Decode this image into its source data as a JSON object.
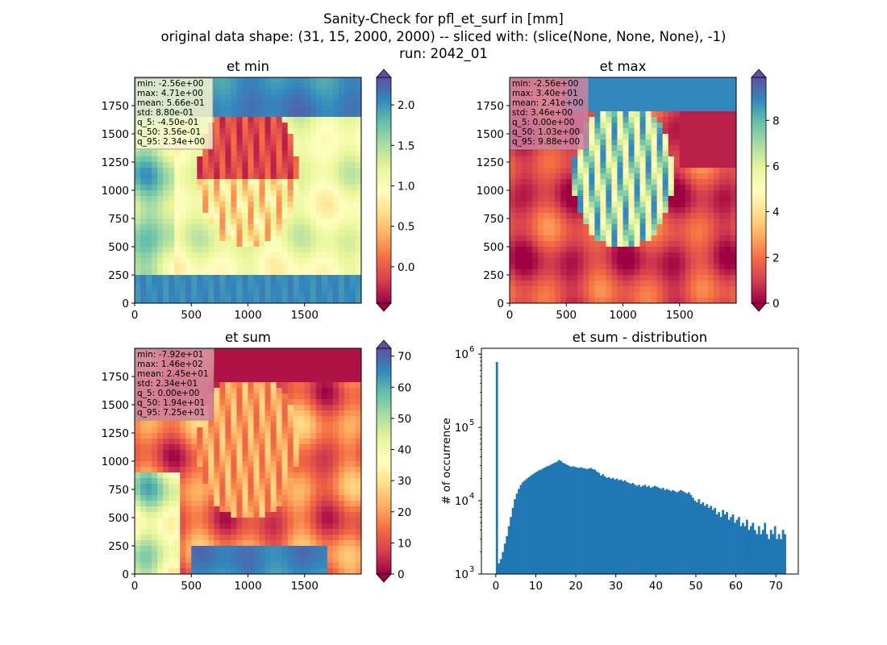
{
  "figure": {
    "title_lines": [
      "Sanity-Check for pfl_et_surf in [mm]",
      "original data shape: (31, 15, 2000, 2000) -- sliced with: (slice(None, None, None), -1)",
      "run: 2042_01"
    ]
  },
  "panels": [
    {
      "title": "et min",
      "stats": [
        "min: -2.56e+00",
        "max: 4.71e+00",
        "mean: 5.66e-01",
        "std: 8.80e-01",
        "q_5: -4.50e-01",
        "q_50: 3.56e-01",
        "q_95: 2.34e+00"
      ],
      "stats_bg": "#f6f9cc",
      "xticks": [
        "0",
        "500",
        "1000",
        "1500"
      ],
      "yticks": [
        "0",
        "250",
        "500",
        "750",
        "1000",
        "1250",
        "1500",
        "1750"
      ],
      "colorbar_ticks": [
        "0.0",
        "0.5",
        "1.0",
        "1.5",
        "2.0"
      ],
      "colorbar_range": [
        -0.45,
        2.34
      ],
      "colorbar_ticks_values": [
        0,
        0.5,
        1.0,
        1.5,
        2.0
      ]
    },
    {
      "title": "et max",
      "stats": [
        "min: -2.56e+00",
        "max: 3.40e+01",
        "mean: 2.41e+00",
        "std: 3.46e+00",
        "q_5: 0.00e+00",
        "q_50: 1.03e+00",
        "q_95: 9.88e+00"
      ],
      "stats_bg": "#d081a0",
      "xticks": [
        "0",
        "500",
        "1000",
        "1500"
      ],
      "yticks": [
        "0",
        "250",
        "500",
        "750",
        "1000",
        "1250",
        "1500",
        "1750"
      ],
      "colorbar_ticks": [
        "0",
        "2",
        "4",
        "6",
        "8"
      ],
      "colorbar_range": [
        0,
        9.88
      ],
      "colorbar_ticks_values": [
        0,
        2,
        4,
        6,
        8
      ]
    },
    {
      "title": "et sum",
      "stats": [
        "min: -7.92e+01",
        "max: 1.46e+02",
        "mean: 2.45e+01",
        "std: 2.34e+01",
        "q_5: 0.00e+00",
        "q_50: 1.94e+01",
        "q_95: 7.25e+01"
      ],
      "stats_bg": "#d081a0",
      "xticks": [
        "0",
        "500",
        "1000",
        "1500"
      ],
      "yticks": [
        "0",
        "250",
        "500",
        "750",
        "1000",
        "1250",
        "1500",
        "1750"
      ],
      "colorbar_ticks": [
        "0",
        "10",
        "20",
        "30",
        "40",
        "50",
        "60",
        "70"
      ],
      "colorbar_range": [
        0,
        72.5
      ],
      "colorbar_ticks_values": [
        0,
        10,
        20,
        30,
        40,
        50,
        60,
        70
      ]
    }
  ],
  "histogram": {
    "title": "et sum - distribution",
    "ylabel": "# of occurrence",
    "xticks": [
      "0",
      "10",
      "20",
      "30",
      "40",
      "50",
      "60",
      "70"
    ],
    "ytick_labels": [
      "10",
      "10",
      "10"
    ],
    "ytick_exponents": [
      "3",
      "4",
      "5"
    ],
    "ytick_top_label": "10",
    "ytick_top_exponent": "6"
  },
  "chart_data": [
    {
      "type": "heatmap",
      "title": "et min",
      "xlim": [
        0,
        2000
      ],
      "ylim": [
        0,
        2000
      ],
      "colormap": "Spectral",
      "color_range": [
        -0.45,
        2.34
      ]
    },
    {
      "type": "heatmap",
      "title": "et max",
      "xlim": [
        0,
        2000
      ],
      "ylim": [
        0,
        2000
      ],
      "colormap": "Spectral",
      "color_range": [
        0,
        9.88
      ]
    },
    {
      "type": "heatmap",
      "title": "et sum",
      "xlim": [
        0,
        2000
      ],
      "ylim": [
        0,
        2000
      ],
      "colormap": "Spectral",
      "color_range": [
        0,
        72.5
      ]
    },
    {
      "type": "bar",
      "title": "et sum - distribution",
      "ylabel": "# of occurrence",
      "yscale": "log",
      "ylim": [
        1000,
        1200000
      ],
      "xlim": [
        -3.6,
        75.6
      ],
      "color": "#1f77b4",
      "bins": {
        "x": [
          0,
          0.5,
          1,
          1.5,
          2,
          2.5,
          3,
          3.5,
          4,
          4.5,
          5,
          5.5,
          6,
          6.5,
          7,
          7.5,
          8,
          8.5,
          9,
          9.5,
          10,
          10.5,
          11,
          11.5,
          12,
          12.5,
          13,
          13.5,
          14,
          14.5,
          15,
          15.5,
          16,
          16.5,
          17,
          17.5,
          18,
          18.5,
          19,
          19.5,
          20,
          20.5,
          21,
          21.5,
          22,
          22.5,
          23,
          23.5,
          24,
          24.5,
          25,
          25.5,
          26,
          26.5,
          27,
          27.5,
          28,
          28.5,
          29,
          29.5,
          30,
          30.5,
          31,
          31.5,
          32,
          32.5,
          33,
          33.5,
          34,
          34.5,
          35,
          35.5,
          36,
          36.5,
          37,
          37.5,
          38,
          38.5,
          39,
          39.5,
          40,
          40.5,
          41,
          41.5,
          42,
          42.5,
          43,
          43.5,
          44,
          44.5,
          45,
          45.5,
          46,
          46.5,
          47,
          47.5,
          48,
          48.5,
          49,
          49.5,
          50,
          50.5,
          51,
          51.5,
          52,
          52.5,
          53,
          53.5,
          54,
          54.5,
          55,
          55.5,
          56,
          56.5,
          57,
          57.5,
          58,
          58.5,
          59,
          59.5,
          60,
          60.5,
          61,
          61.5,
          62,
          62.5,
          63,
          63.5,
          64,
          64.5,
          65,
          65.5,
          66,
          66.5,
          67,
          67.5,
          68,
          68.5,
          69,
          69.5,
          70,
          70.5,
          71,
          71.5,
          72
        ],
        "counts": [
          780000,
          1400,
          1600,
          2000,
          2600,
          3300,
          4500,
          6000,
          8000,
          10500,
          12500,
          14500,
          16500,
          18000,
          19000,
          20000,
          21000,
          22000,
          23000,
          24000,
          25000,
          26000,
          26500,
          27500,
          28500,
          29500,
          30000,
          31000,
          32000,
          33000,
          34000,
          36000,
          35000,
          33000,
          32000,
          31000,
          30000,
          29000,
          29500,
          29000,
          28500,
          28000,
          28500,
          28000,
          27500,
          27000,
          27500,
          28000,
          27000,
          26500,
          25000,
          24000,
          22000,
          23000,
          21500,
          20500,
          21000,
          20000,
          20500,
          19500,
          20000,
          19000,
          19500,
          18500,
          19000,
          18000,
          17500,
          17000,
          17500,
          16500,
          16000,
          16500,
          15500,
          16000,
          16500,
          15500,
          16000,
          15000,
          15500,
          16000,
          15500,
          15000,
          14500,
          15000,
          14000,
          14500,
          14000,
          13500,
          14000,
          13500,
          13000,
          13500,
          14000,
          13500,
          13000,
          12500,
          13000,
          12000,
          11000,
          10000,
          9500,
          10500,
          9000,
          9500,
          8500,
          9000,
          8000,
          8500,
          7500,
          8000,
          6500,
          7000,
          6000,
          7500,
          6500,
          7000,
          5500,
          6000,
          6500,
          5000,
          5500,
          6000,
          4500,
          5000,
          4500,
          5500,
          4000,
          4500,
          5000,
          4000,
          3500,
          4500,
          3500,
          4000,
          5000,
          3500,
          3000,
          4000,
          3500,
          4500,
          3000,
          3500,
          3000,
          4000,
          3500
        ]
      }
    }
  ]
}
